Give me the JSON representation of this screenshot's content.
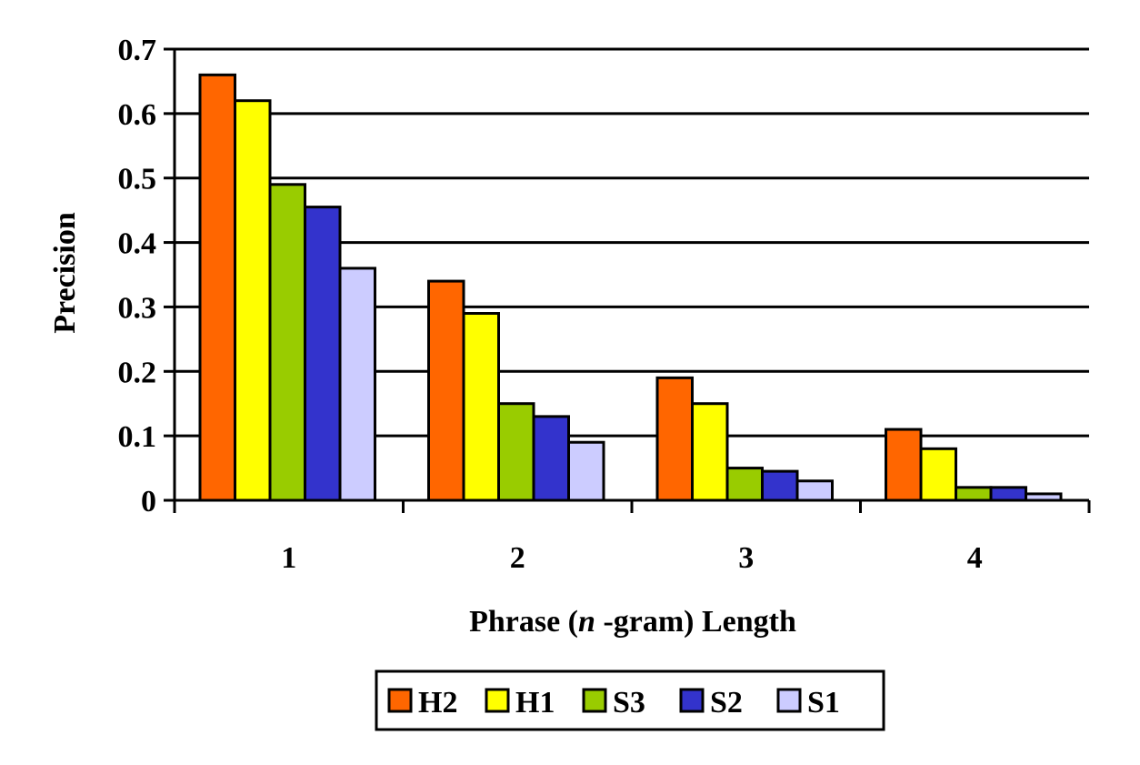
{
  "chart_data": {
    "type": "bar",
    "title": "",
    "xlabel": "Phrase (n-gram) Length",
    "xlabel_parts": [
      "Phrase (",
      "n",
      " -gram) Length"
    ],
    "ylabel": "Precision",
    "categories": [
      "1",
      "2",
      "3",
      "4"
    ],
    "ylim": [
      0,
      0.7
    ],
    "yticks": [
      "0",
      "0.1",
      "0.2",
      "0.3",
      "0.4",
      "0.5",
      "0.6",
      "0.7"
    ],
    "grid": true,
    "legend_position": "bottom",
    "series": [
      {
        "name": "H2",
        "color": "#ff6600",
        "values": [
          0.66,
          0.34,
          0.19,
          0.11
        ]
      },
      {
        "name": "H1",
        "color": "#ffff00",
        "values": [
          0.62,
          0.29,
          0.15,
          0.08
        ]
      },
      {
        "name": "S3",
        "color": "#99cc00",
        "values": [
          0.49,
          0.15,
          0.05,
          0.02
        ]
      },
      {
        "name": "S2",
        "color": "#3333cc",
        "values": [
          0.455,
          0.13,
          0.045,
          0.02
        ]
      },
      {
        "name": "S1",
        "color": "#ccccff",
        "values": [
          0.36,
          0.09,
          0.03,
          0.01
        ]
      }
    ]
  }
}
